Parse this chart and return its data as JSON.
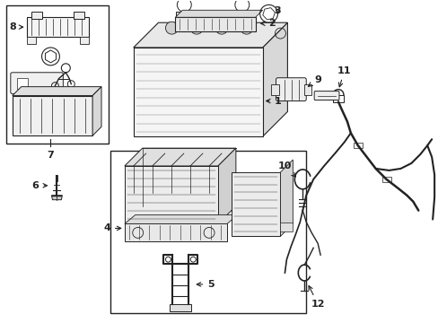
{
  "background_color": "#ffffff",
  "line_color": "#222222",
  "fig_width": 4.89,
  "fig_height": 3.6,
  "dpi": 100
}
